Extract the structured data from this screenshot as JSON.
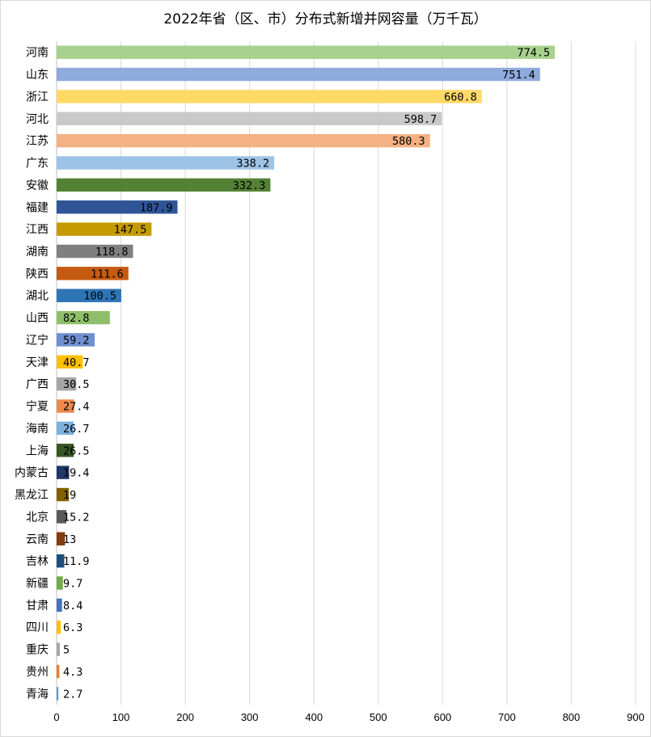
{
  "chart_data": {
    "type": "bar",
    "orientation": "horizontal",
    "title": "2022年省（区、市）分布式新增并网容量（万千瓦）",
    "categories": [
      "河南",
      "山东",
      "浙江",
      "河北",
      "江苏",
      "广东",
      "安徽",
      "福建",
      "江西",
      "湖南",
      "陕西",
      "湖北",
      "山西",
      "辽宁",
      "天津",
      "广西",
      "宁夏",
      "海南",
      "上海",
      "内蒙古",
      "黑龙江",
      "北京",
      "云南",
      "吉林",
      "新疆",
      "甘肃",
      "四川",
      "重庆",
      "贵州",
      "青海"
    ],
    "values": [
      774.5,
      751.4,
      660.8,
      598.7,
      580.3,
      338.2,
      332.3,
      187.9,
      147.5,
      118.8,
      111.6,
      100.5,
      82.8,
      59.2,
      40.7,
      30.5,
      27.4,
      26.7,
      26.5,
      19.4,
      19,
      15.2,
      13,
      11.9,
      9.7,
      8.4,
      6.3,
      5,
      4.3,
      2.7
    ],
    "value_labels": [
      "774.5",
      "751.4",
      "660.8",
      "598.7",
      "580.3",
      "338.2",
      "332.3",
      "187.9",
      "147.5",
      "118.8",
      "111.6",
      "100.5",
      "82.8",
      "59.2",
      "40.7",
      "30.5",
      "27.4",
      "26.7",
      "26.5",
      "19.4",
      "19",
      "15.2",
      "13",
      "11.9",
      "9.7",
      "8.4",
      "6.3",
      "5",
      "4.3",
      "2.7"
    ],
    "colors": [
      "#a9d18e",
      "#8faadc",
      "#ffd966",
      "#c9c9c9",
      "#f4b183",
      "#9dc3e6",
      "#548235",
      "#2f5597",
      "#c59a00",
      "#7f7f7f",
      "#c55a11",
      "#2e75b6",
      "#8fbf6b",
      "#6f8fd0",
      "#ffc000",
      "#a5a5a5",
      "#ed8a4f",
      "#7fb0de",
      "#375623",
      "#1f3864",
      "#806000",
      "#595959",
      "#843c0c",
      "#1f4e79",
      "#70ad47",
      "#4472c4",
      "#ffc000",
      "#a5a5a5",
      "#ed7d31",
      "#5b9bd5"
    ],
    "xlim": [
      0,
      900
    ],
    "xticks": [
      "0",
      "100",
      "200",
      "300",
      "400",
      "500",
      "600",
      "700",
      "800",
      "900"
    ],
    "grid": true,
    "legend": "none"
  }
}
